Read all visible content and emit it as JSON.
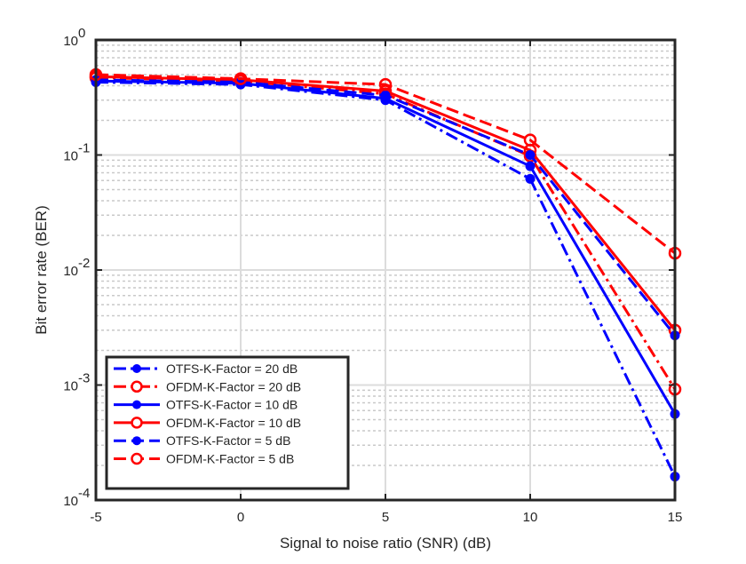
{
  "chart_data": {
    "type": "line",
    "title": "",
    "xlabel": "Signal to noise ratio (SNR) (dB)",
    "ylabel": "Bit error rate (BER)",
    "x": [
      -5,
      0,
      5,
      10,
      15
    ],
    "xlim": [
      -5,
      15
    ],
    "ylim": [
      0.0001,
      1
    ],
    "yscale": "log",
    "grid": true,
    "minor_grid": true,
    "legend_position": "bottom-left",
    "x_tick_labels": [
      "-5",
      "0",
      "5",
      "10",
      "15"
    ],
    "y_tick_labels": [
      {
        "base": "10",
        "exp": "-4"
      },
      {
        "base": "10",
        "exp": "-3"
      },
      {
        "base": "10",
        "exp": "-2"
      },
      {
        "base": "10",
        "exp": "-1"
      },
      {
        "base": "10",
        "exp": "0"
      }
    ],
    "series": [
      {
        "name": "OTFS-K-Factor = 20 dB",
        "color": "#0000ff",
        "dash": "dashdot",
        "marker": "filled-circle",
        "values": [
          0.43,
          0.41,
          0.3,
          0.062,
          0.00016
        ]
      },
      {
        "name": "OFDM-K-Factor = 20 dB",
        "color": "#ff0000",
        "dash": "dashdot",
        "marker": "open-circle",
        "values": [
          0.47,
          0.44,
          0.34,
          0.098,
          0.00092
        ]
      },
      {
        "name": "OTFS-K-Factor = 10 dB",
        "color": "#0000ff",
        "dash": "solid",
        "marker": "filled-circle",
        "values": [
          0.44,
          0.42,
          0.31,
          0.08,
          0.00056
        ]
      },
      {
        "name": "OFDM-K-Factor = 10 dB",
        "color": "#ff0000",
        "dash": "solid",
        "marker": "open-circle",
        "values": [
          0.48,
          0.45,
          0.36,
          0.11,
          0.003
        ]
      },
      {
        "name": "OTFS-K-Factor = 5 dB",
        "color": "#0000ff",
        "dash": "dashed",
        "marker": "filled-circle",
        "values": [
          0.45,
          0.43,
          0.33,
          0.1,
          0.0027
        ]
      },
      {
        "name": "OFDM-K-Factor = 5 dB",
        "color": "#ff0000",
        "dash": "dashed",
        "marker": "open-circle",
        "values": [
          0.5,
          0.46,
          0.41,
          0.135,
          0.014
        ]
      }
    ]
  }
}
